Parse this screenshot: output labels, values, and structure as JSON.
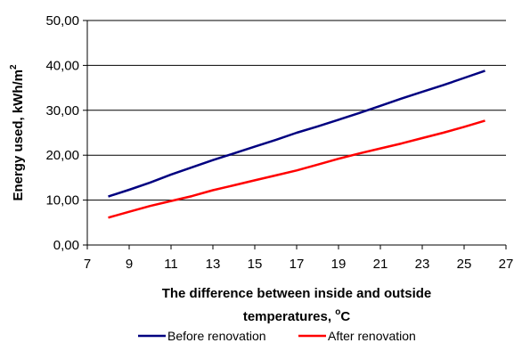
{
  "chart_data": {
    "type": "line",
    "xlabel_line1": "The difference between inside and outside",
    "xlabel_line2_prefix": "temperatures, ",
    "xlabel_line2_unit_sup": "o",
    "xlabel_line2_unit": "C",
    "ylabel_prefix": "Energy used, kWh/m",
    "ylabel_sup": "2",
    "xlim": [
      7,
      27
    ],
    "ylim": [
      0,
      50
    ],
    "x_ticks": [
      "7",
      "9",
      "11",
      "13",
      "15",
      "17",
      "19",
      "21",
      "23",
      "25",
      "27"
    ],
    "y_ticks": [
      "0,00",
      "10,00",
      "20,00",
      "30,00",
      "40,00",
      "50,00"
    ],
    "grid": "horizontal",
    "legend_position": "bottom",
    "series": [
      {
        "name": "Before renovation",
        "color": "#000080",
        "x": [
          8,
          9,
          10,
          11,
          12,
          13,
          14,
          15,
          16,
          17,
          18,
          19,
          20,
          21,
          22,
          23,
          24,
          25,
          26
        ],
        "y": [
          10.8,
          12.3,
          13.9,
          15.7,
          17.3,
          18.9,
          20.4,
          21.9,
          23.4,
          25.0,
          26.4,
          27.9,
          29.4,
          31.0,
          32.6,
          34.1,
          35.6,
          37.2,
          38.8
        ]
      },
      {
        "name": "After renovation",
        "color": "#ff0000",
        "x": [
          8,
          9,
          10,
          11,
          12,
          13,
          14,
          15,
          16,
          17,
          18,
          19,
          20,
          21,
          22,
          23,
          24,
          25,
          26
        ],
        "y": [
          6.1,
          7.4,
          8.7,
          9.8,
          10.9,
          12.2,
          13.3,
          14.4,
          15.5,
          16.6,
          17.9,
          19.2,
          20.4,
          21.5,
          22.6,
          23.8,
          25.0,
          26.3,
          27.7
        ]
      }
    ]
  }
}
